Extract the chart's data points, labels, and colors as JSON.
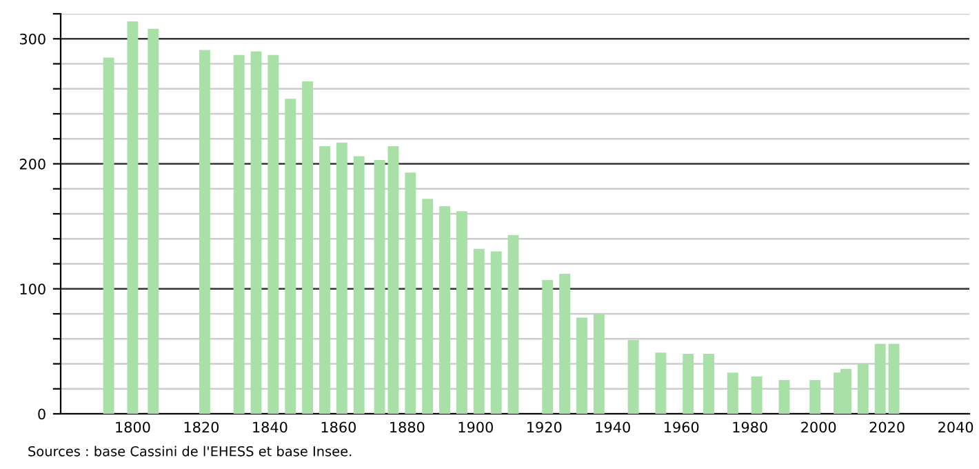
{
  "chart_data": {
    "type": "bar",
    "x": [
      1793,
      1800,
      1806,
      1821,
      1831,
      1836,
      1841,
      1846,
      1851,
      1856,
      1861,
      1866,
      1872,
      1876,
      1881,
      1886,
      1891,
      1896,
      1901,
      1906,
      1911,
      1921,
      1926,
      1931,
      1936,
      1946,
      1954,
      1962,
      1968,
      1975,
      1982,
      1990,
      1999,
      2006,
      2008,
      2013,
      2018,
      2022
    ],
    "values": [
      285,
      314,
      308,
      291,
      287,
      290,
      287,
      252,
      266,
      214,
      217,
      206,
      203,
      214,
      193,
      172,
      166,
      162,
      132,
      130,
      143,
      107,
      112,
      77,
      80,
      59,
      49,
      48,
      48,
      33,
      30,
      27,
      27,
      33,
      36,
      40,
      56,
      56
    ],
    "color": "#a8e0a8",
    "xlim": [
      1779,
      2044
    ],
    "xticks": [
      1800,
      1820,
      1840,
      1860,
      1880,
      1900,
      1920,
      1940,
      1960,
      1980,
      2000,
      2020,
      2040
    ],
    "ylim": [
      0,
      320
    ],
    "yticks": [
      0,
      {
        "value": 20,
        "label": null
      },
      {
        "value": 40,
        "label": null
      },
      {
        "value": 60,
        "label": null
      },
      {
        "value": 80,
        "label": null
      },
      100,
      {
        "value": 120,
        "label": null
      },
      {
        "value": 140,
        "label": null
      },
      {
        "value": 160,
        "label": null
      },
      {
        "value": 180,
        "label": null
      },
      200,
      {
        "value": 220,
        "label": null
      },
      {
        "value": 240,
        "label": null
      },
      {
        "value": 260,
        "label": null
      },
      {
        "value": 280,
        "label": null
      },
      300,
      {
        "value": 320,
        "label": null
      }
    ],
    "grid": "y",
    "annotations": [
      "Sources : base Cassini de l'EHESS et base Insee."
    ]
  }
}
